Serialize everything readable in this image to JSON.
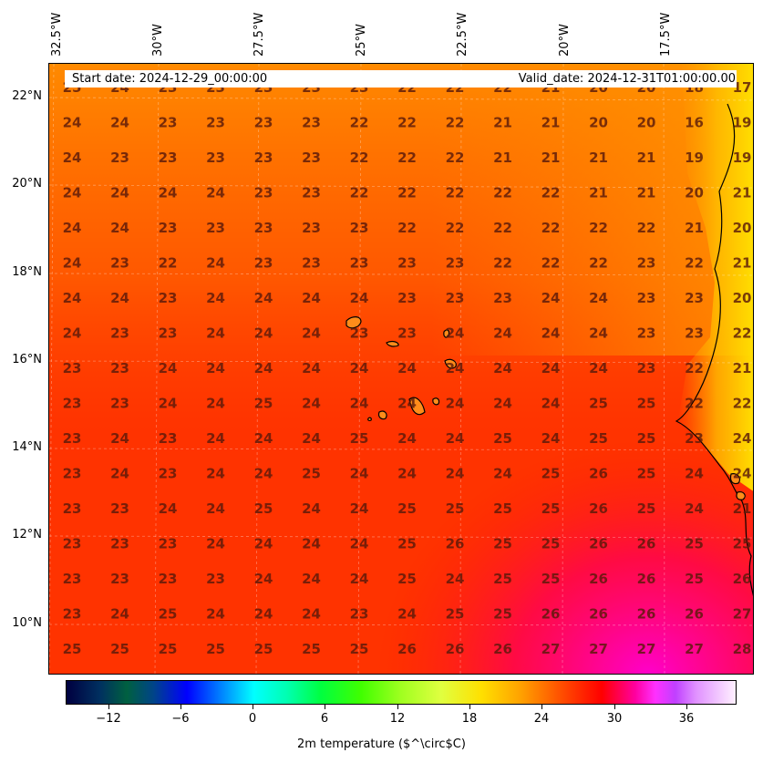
{
  "header": {
    "start_date": "Start date: 2024-12-29_00:00:00",
    "valid_date": "Valid_date: 2024-12-31T01:00:00.00"
  },
  "longitude_labels": [
    "32.5°W",
    "30°W",
    "27.5°W",
    "25°W",
    "22.5°W",
    "20°W",
    "17.5°W"
  ],
  "latitude_labels": [
    "22°N",
    "20°N",
    "18°N",
    "16°N",
    "14°N",
    "12°N",
    "10°N"
  ],
  "grid_values": [
    [
      "25",
      "24",
      "23",
      "23",
      "23",
      "23",
      "23",
      "22",
      "22",
      "22",
      "21",
      "20",
      "20",
      "18",
      "17"
    ],
    [
      "24",
      "24",
      "23",
      "23",
      "23",
      "23",
      "22",
      "22",
      "22",
      "21",
      "21",
      "20",
      "20",
      "16",
      "19"
    ],
    [
      "24",
      "23",
      "23",
      "23",
      "23",
      "23",
      "22",
      "22",
      "22",
      "21",
      "21",
      "21",
      "21",
      "19",
      "19"
    ],
    [
      "24",
      "24",
      "24",
      "24",
      "23",
      "23",
      "22",
      "22",
      "22",
      "22",
      "22",
      "21",
      "21",
      "20",
      "21"
    ],
    [
      "24",
      "24",
      "23",
      "23",
      "23",
      "23",
      "23",
      "22",
      "22",
      "22",
      "22",
      "22",
      "22",
      "21",
      "20"
    ],
    [
      "24",
      "23",
      "22",
      "24",
      "23",
      "23",
      "23",
      "23",
      "23",
      "22",
      "22",
      "22",
      "23",
      "22",
      "21"
    ],
    [
      "24",
      "24",
      "23",
      "24",
      "24",
      "24",
      "24",
      "23",
      "23",
      "23",
      "24",
      "24",
      "23",
      "23",
      "20"
    ],
    [
      "24",
      "23",
      "23",
      "24",
      "24",
      "24",
      "23",
      "23",
      "24",
      "24",
      "24",
      "24",
      "23",
      "23",
      "22"
    ],
    [
      "23",
      "23",
      "24",
      "24",
      "24",
      "24",
      "24",
      "24",
      "24",
      "24",
      "24",
      "24",
      "23",
      "22",
      "21"
    ],
    [
      "23",
      "23",
      "24",
      "24",
      "25",
      "24",
      "24",
      "24",
      "24",
      "24",
      "24",
      "25",
      "25",
      "22",
      "22"
    ],
    [
      "23",
      "24",
      "23",
      "24",
      "24",
      "24",
      "25",
      "24",
      "24",
      "25",
      "24",
      "25",
      "25",
      "23",
      "24"
    ],
    [
      "23",
      "24",
      "23",
      "24",
      "24",
      "25",
      "24",
      "24",
      "24",
      "24",
      "25",
      "26",
      "25",
      "24",
      "24"
    ],
    [
      "23",
      "23",
      "24",
      "24",
      "25",
      "24",
      "24",
      "25",
      "25",
      "25",
      "25",
      "26",
      "25",
      "24",
      "21"
    ],
    [
      "23",
      "23",
      "23",
      "24",
      "24",
      "24",
      "24",
      "25",
      "26",
      "25",
      "25",
      "26",
      "26",
      "25",
      "25"
    ],
    [
      "23",
      "23",
      "23",
      "23",
      "24",
      "24",
      "24",
      "25",
      "24",
      "25",
      "25",
      "26",
      "26",
      "25",
      "26"
    ],
    [
      "23",
      "24",
      "25",
      "24",
      "24",
      "24",
      "23",
      "24",
      "25",
      "25",
      "26",
      "26",
      "26",
      "26",
      "27"
    ],
    [
      "25",
      "25",
      "25",
      "25",
      "25",
      "25",
      "25",
      "26",
      "26",
      "26",
      "27",
      "27",
      "27",
      "27",
      "28"
    ]
  ],
  "colorbar": {
    "title": "2m temperature ($^\\circ$C)",
    "ticks": [
      "−12",
      "−6",
      "0",
      "6",
      "12",
      "18",
      "24",
      "30",
      "36"
    ]
  },
  "colors": {
    "ocean_base": "#ff3300",
    "north_warm": "#ff8a00",
    "coast_yellow": "#ffd400",
    "south_magenta": "#ff00cc",
    "value_text": "#5a1a0a"
  }
}
